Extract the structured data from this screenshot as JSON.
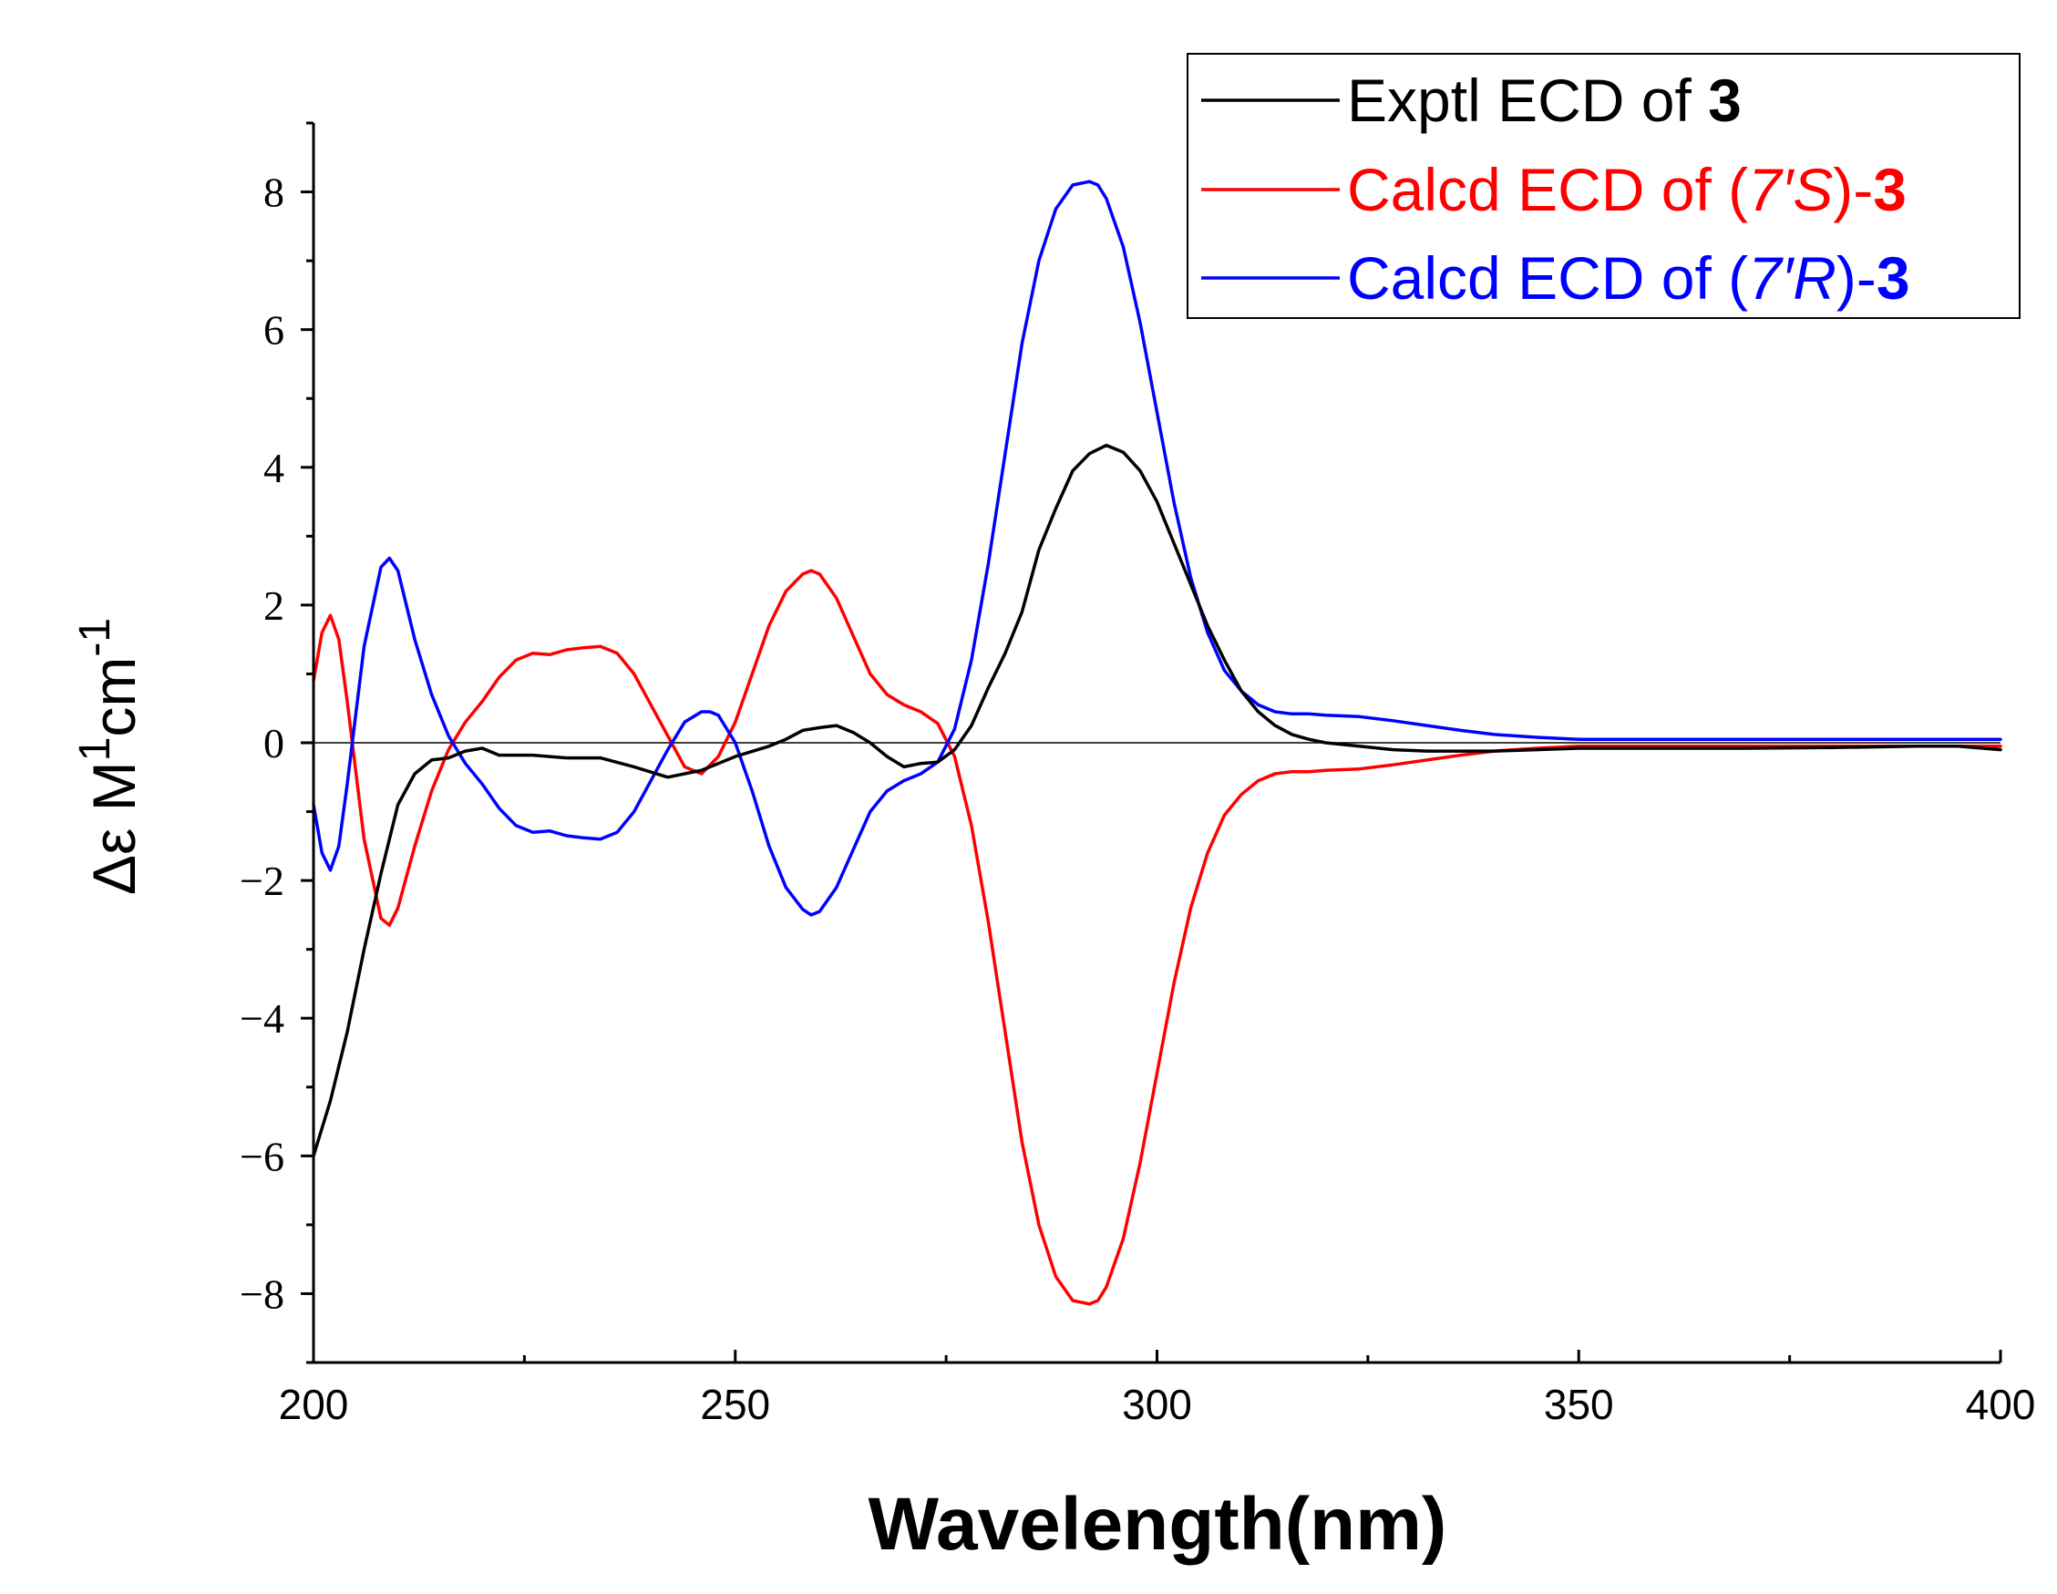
{
  "chart_data": {
    "type": "line",
    "title": "",
    "xlabel": "Wavelength(nm)",
    "ylabel": {
      "prefix": "Δε M",
      "sup1": "1",
      "mid": "cm",
      "sup2": "-1"
    },
    "xlim": [
      200,
      400
    ],
    "ylim": [
      -9,
      9
    ],
    "xticks": [
      200,
      250,
      300,
      350,
      400
    ],
    "xtick_labels": [
      "200",
      "250",
      "300",
      "350",
      "400"
    ],
    "yticks": [
      -8,
      -6,
      -4,
      -2,
      0,
      2,
      4,
      6,
      8
    ],
    "ytick_labels": [
      "−8",
      "−6",
      "−4",
      "−2",
      "0",
      "2",
      "4",
      "6",
      "8"
    ],
    "grid": false,
    "zero_line": true,
    "legend_position": "top-right",
    "series": [
      {
        "name": "Exptl ECD of 3",
        "legend": [
          {
            "text": "Exptl  ECD of ",
            "style": "normal"
          },
          {
            "text": "3",
            "style": "bold"
          }
        ],
        "color": "#000000",
        "x": [
          200,
          202,
          204,
          206,
          208,
          210,
          212,
          214,
          216,
          218,
          220,
          222,
          226,
          230,
          234,
          238,
          242,
          246,
          250,
          254,
          256,
          258,
          260,
          262,
          264,
          266,
          268,
          270,
          272,
          274,
          276,
          278,
          280,
          282,
          284,
          286,
          288,
          290,
          292,
          294,
          296,
          298,
          300,
          302,
          304,
          306,
          308,
          310,
          312,
          314,
          316,
          318,
          320,
          324,
          328,
          332,
          336,
          340,
          345,
          350,
          360,
          370,
          380,
          390,
          395,
          400
        ],
        "y": [
          -6.0,
          -5.2,
          -4.2,
          -3.0,
          -1.9,
          -0.9,
          -0.45,
          -0.25,
          -0.22,
          -0.12,
          -0.08,
          -0.18,
          -0.18,
          -0.22,
          -0.22,
          -0.35,
          -0.5,
          -0.4,
          -0.2,
          -0.05,
          0.05,
          0.18,
          0.22,
          0.25,
          0.15,
          0.0,
          -0.2,
          -0.35,
          -0.3,
          -0.28,
          -0.1,
          0.25,
          0.8,
          1.3,
          1.9,
          2.8,
          3.4,
          3.95,
          4.2,
          4.32,
          4.22,
          3.95,
          3.5,
          2.9,
          2.3,
          1.7,
          1.2,
          0.75,
          0.45,
          0.25,
          0.12,
          0.05,
          0.0,
          -0.05,
          -0.1,
          -0.12,
          -0.12,
          -0.12,
          -0.1,
          -0.08,
          -0.08,
          -0.08,
          -0.07,
          -0.05,
          -0.05,
          -0.1
        ]
      },
      {
        "name": "Calcd ECD of (7′S)-3",
        "legend": [
          {
            "text": "Calcd ECD of (",
            "style": "normal"
          },
          {
            "text": "7′S",
            "style": "italic"
          },
          {
            "text": ")-",
            "style": "normal"
          },
          {
            "text": "3",
            "style": "bold"
          }
        ],
        "color": "#ff0000",
        "x": [
          200,
          201,
          202,
          203,
          204,
          206,
          208,
          209,
          210,
          212,
          214,
          216,
          218,
          220,
          222,
          224,
          226,
          228,
          230,
          232,
          234,
          236,
          238,
          240,
          242,
          244,
          246,
          248,
          250,
          252,
          254,
          256,
          258,
          259,
          260,
          262,
          264,
          266,
          268,
          270,
          272,
          274,
          276,
          278,
          280,
          282,
          284,
          286,
          288,
          290,
          292,
          293,
          294,
          296,
          298,
          300,
          302,
          304,
          306,
          308,
          310,
          312,
          314,
          316,
          318,
          320,
          324,
          328,
          332,
          336,
          340,
          345,
          350,
          360,
          370,
          380,
          390,
          400
        ],
        "y": [
          0.9,
          1.6,
          1.85,
          1.5,
          0.6,
          -1.4,
          -2.55,
          -2.65,
          -2.4,
          -1.5,
          -0.7,
          -0.1,
          0.3,
          0.6,
          0.95,
          1.2,
          1.3,
          1.28,
          1.35,
          1.38,
          1.4,
          1.3,
          1.0,
          0.55,
          0.1,
          -0.35,
          -0.45,
          -0.2,
          0.3,
          1.0,
          1.7,
          2.2,
          2.45,
          2.5,
          2.45,
          2.1,
          1.55,
          1.0,
          0.7,
          0.55,
          0.45,
          0.28,
          -0.2,
          -1.2,
          -2.6,
          -4.2,
          -5.8,
          -7.0,
          -7.75,
          -8.1,
          -8.15,
          -8.1,
          -7.9,
          -7.2,
          -6.1,
          -4.8,
          -3.5,
          -2.4,
          -1.6,
          -1.05,
          -0.75,
          -0.55,
          -0.45,
          -0.42,
          -0.42,
          -0.4,
          -0.38,
          -0.32,
          -0.25,
          -0.18,
          -0.12,
          -0.08,
          -0.05,
          -0.05,
          -0.05,
          -0.05,
          -0.05,
          -0.05
        ]
      },
      {
        "name": "Calcd ECD of (7′R)-3",
        "legend": [
          {
            "text": "Calcd ECD of (",
            "style": "normal"
          },
          {
            "text": "7′R",
            "style": "italic"
          },
          {
            "text": ")-",
            "style": "normal"
          },
          {
            "text": "3",
            "style": "bold"
          }
        ],
        "color": "#0000ff",
        "x": [
          200,
          201,
          202,
          203,
          204,
          206,
          208,
          209,
          210,
          212,
          214,
          216,
          218,
          220,
          222,
          224,
          226,
          228,
          230,
          232,
          234,
          236,
          238,
          240,
          242,
          244,
          246,
          247,
          248,
          250,
          252,
          254,
          256,
          258,
          259,
          260,
          262,
          264,
          266,
          268,
          270,
          272,
          274,
          276,
          278,
          280,
          282,
          284,
          286,
          288,
          290,
          292,
          293,
          294,
          296,
          298,
          300,
          302,
          304,
          306,
          308,
          310,
          312,
          314,
          316,
          318,
          320,
          324,
          328,
          332,
          336,
          340,
          345,
          350,
          360,
          370,
          380,
          390,
          400
        ],
        "y": [
          -0.9,
          -1.6,
          -1.85,
          -1.5,
          -0.6,
          1.4,
          2.55,
          2.68,
          2.5,
          1.5,
          0.7,
          0.1,
          -0.3,
          -0.6,
          -0.95,
          -1.2,
          -1.3,
          -1.28,
          -1.35,
          -1.38,
          -1.4,
          -1.3,
          -1.0,
          -0.55,
          -0.1,
          0.3,
          0.45,
          0.45,
          0.4,
          0.0,
          -0.7,
          -1.5,
          -2.1,
          -2.42,
          -2.5,
          -2.45,
          -2.1,
          -1.55,
          -1.0,
          -0.7,
          -0.55,
          -0.45,
          -0.28,
          0.2,
          1.2,
          2.6,
          4.2,
          5.8,
          7.0,
          7.75,
          8.1,
          8.15,
          8.1,
          7.9,
          7.2,
          6.1,
          4.8,
          3.5,
          2.4,
          1.6,
          1.05,
          0.75,
          0.55,
          0.45,
          0.42,
          0.42,
          0.4,
          0.38,
          0.32,
          0.25,
          0.18,
          0.12,
          0.08,
          0.05,
          0.05,
          0.05,
          0.05,
          0.05,
          0.05
        ]
      }
    ]
  }
}
